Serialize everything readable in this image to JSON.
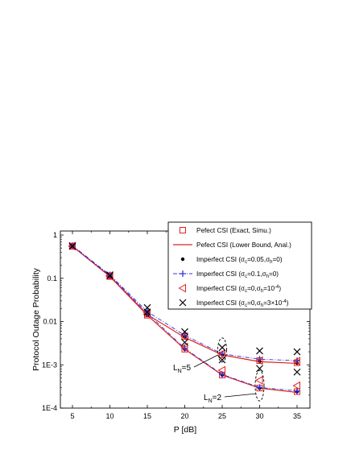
{
  "chart_data": {
    "type": "line",
    "xlabel": "P [dB]",
    "ylabel": "Protocol Outage Probability",
    "xlim": [
      5,
      35
    ],
    "ylim": [
      0.0001,
      1
    ],
    "yscale": "log",
    "x_ticks": [
      {
        "value": 5,
        "label": "5"
      },
      {
        "value": 10,
        "label": "10"
      },
      {
        "value": 15,
        "label": "15"
      },
      {
        "value": 20,
        "label": "20"
      },
      {
        "value": 25,
        "label": "25"
      },
      {
        "value": 30,
        "label": "30"
      },
      {
        "value": 35,
        "label": "35"
      }
    ],
    "y_ticks": [
      {
        "value": 1,
        "label": "1"
      },
      {
        "value": 0.1,
        "label": "0.1"
      },
      {
        "value": 0.01,
        "label": "0.01"
      },
      {
        "value": 0.001,
        "label": "1E-3"
      },
      {
        "value": 0.0001,
        "label": "1E-4"
      }
    ],
    "grid": false,
    "legend_position": "top-right",
    "x": [
      5,
      10,
      15,
      20,
      25,
      30,
      35
    ],
    "legend": [
      {
        "marker": "square",
        "style": "marker",
        "color": "#e02020",
        "text": "Pefect CSI (Exact, Simu.)"
      },
      {
        "marker": "none",
        "style": "solid",
        "color": "#e02020",
        "text": "Pefect CSI (Lower Bound, Anal.)"
      },
      {
        "marker": "dot",
        "style": "marker",
        "color": "#000000",
        "text": "Imperfect CSI (σc=0.05,σh=0)"
      },
      {
        "marker": "plus",
        "style": "dashdot",
        "color": "#3333dd",
        "text": "Imperfect CSI (σc=0.1,σh=0)"
      },
      {
        "marker": "triangle-left",
        "style": "marker",
        "color": "#e02020",
        "text": "Imperfect CSI (σc=0,σh=10-4)"
      },
      {
        "marker": "x",
        "style": "marker",
        "color": "#000000",
        "text": "Imperfect CSI (σc=0,σh=3×10-4)"
      }
    ],
    "groups": [
      {
        "label": "LN=5",
        "series": [
          {
            "marker": "square",
            "values": [
              0.55,
              0.115,
              0.015,
              0.0045,
              0.0017,
              0.00125,
              0.00112
            ]
          },
          {
            "marker": "line",
            "values": [
              0.55,
              0.112,
              0.0145,
              0.0043,
              0.0017,
              0.00118,
              0.00108
            ]
          },
          {
            "marker": "dot",
            "values": [
              0.55,
              0.115,
              0.015,
              0.0044,
              0.0017,
              0.0012,
              0.0011
            ]
          },
          {
            "marker": "plus",
            "values": [
              0.57,
              0.12,
              0.017,
              0.0048,
              0.0018,
              0.00135,
              0.00125
            ]
          },
          {
            "marker": "triangle-left",
            "values": [
              0.56,
              0.115,
              0.016,
              0.0045,
              0.0018,
              0.00125,
              0.00122
            ]
          },
          {
            "marker": "x",
            "values": [
              0.57,
              0.12,
              0.021,
              0.0058,
              0.0025,
              0.0021,
              0.002
            ]
          }
        ]
      },
      {
        "label": "LN=2",
        "series": [
          {
            "marker": "square",
            "values": [
              0.55,
              0.11,
              0.014,
              0.0023,
              0.00058,
              0.00029,
              0.00024
            ]
          },
          {
            "marker": "line",
            "values": [
              0.55,
              0.11,
              0.014,
              0.0023,
              0.00058,
              0.00029,
              0.00023
            ]
          },
          {
            "marker": "dot",
            "values": [
              0.55,
              0.11,
              0.014,
              0.0023,
              0.00058,
              0.00029,
              0.00024
            ]
          },
          {
            "marker": "plus",
            "values": [
              0.56,
              0.115,
              0.0155,
              0.0024,
              0.0006,
              0.0003,
              0.00025
            ]
          },
          {
            "marker": "triangle-left",
            "values": [
              0.55,
              0.112,
              0.0148,
              0.0026,
              0.00075,
              0.00044,
              0.00033
            ]
          },
          {
            "marker": "x",
            "values": [
              0.55,
              0.115,
              0.0165,
              0.0033,
              0.0013,
              0.00082,
              0.00068
            ]
          }
        ]
      }
    ],
    "annotations": [
      {
        "base": "L",
        "sub": "N",
        "rest": "=5",
        "ellipse_x": 25,
        "ellipse_y": 0.0022
      },
      {
        "base": "L",
        "sub": "N",
        "rest": "=2",
        "ellipse_x": 30,
        "ellipse_y": 0.00033
      }
    ]
  }
}
